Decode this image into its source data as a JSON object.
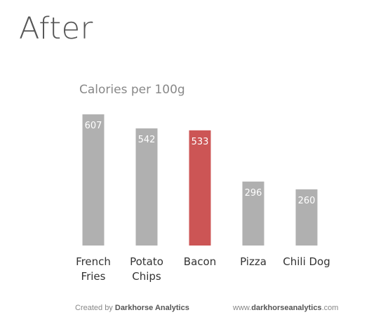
{
  "heading": "After",
  "footer": {
    "created_prefix": "Created by",
    "created_brand": "Darkhorse Analytics",
    "url_prefix": "www.",
    "url_brand": "darkhorseanalytics",
    "url_suffix": ".com"
  },
  "colors": {
    "bar": "#b0b0b0",
    "highlight": "#cc5555",
    "label_text": "#ffffff",
    "category_text": "#333333",
    "title_text": "#888888"
  },
  "chart_data": {
    "type": "bar",
    "title": "Calories per 100g",
    "categories": [
      [
        "French",
        "Fries"
      ],
      [
        "Potato",
        "Chips"
      ],
      [
        "Bacon"
      ],
      [
        "Pizza"
      ],
      [
        "Chili Dog"
      ]
    ],
    "values": [
      607,
      542,
      533,
      296,
      260
    ],
    "highlight_index": 2,
    "ylim": [
      0,
      607
    ],
    "grid": false,
    "data_labels": true
  }
}
